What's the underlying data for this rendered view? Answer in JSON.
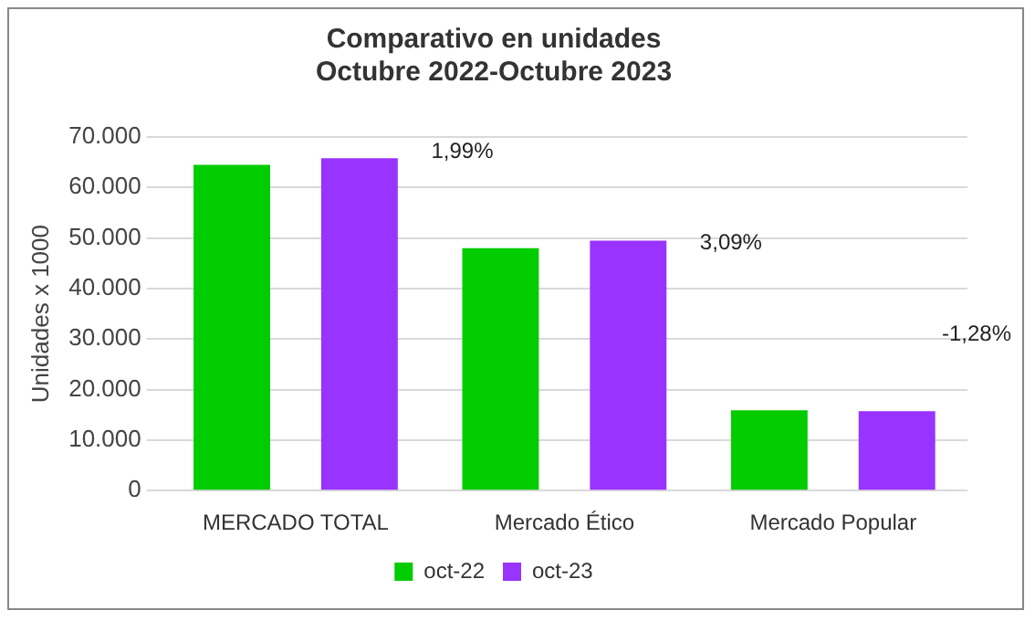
{
  "chart_data": {
    "type": "bar",
    "title": [
      "Comparativo en unidades",
      "Octubre 2022-Octubre 2023"
    ],
    "ylabel": "Unidades x 1000",
    "categories": [
      "MERCADO TOTAL",
      "Mercado Ético",
      "Mercado Popular"
    ],
    "series": [
      {
        "name": "oct-22",
        "color": "#00cc00",
        "values": [
          64500,
          48000,
          15900
        ]
      },
      {
        "name": "oct-23",
        "color": "#9933ff",
        "values": [
          65800,
          49500,
          15700
        ]
      }
    ],
    "ylim": [
      0,
      70000
    ],
    "yticks": [
      {
        "value": 0,
        "label": "0"
      },
      {
        "value": 10000,
        "label": "10.000"
      },
      {
        "value": 20000,
        "label": "20.000"
      },
      {
        "value": 30000,
        "label": "30.000"
      },
      {
        "value": 40000,
        "label": "40.000"
      },
      {
        "value": 50000,
        "label": "50.000"
      },
      {
        "value": 60000,
        "label": "60.000"
      },
      {
        "value": 70000,
        "label": "70.000"
      }
    ],
    "annotations": [
      "1,99%",
      "3,09%",
      "-1,28%"
    ],
    "grid": "y",
    "legend": "bottom"
  }
}
